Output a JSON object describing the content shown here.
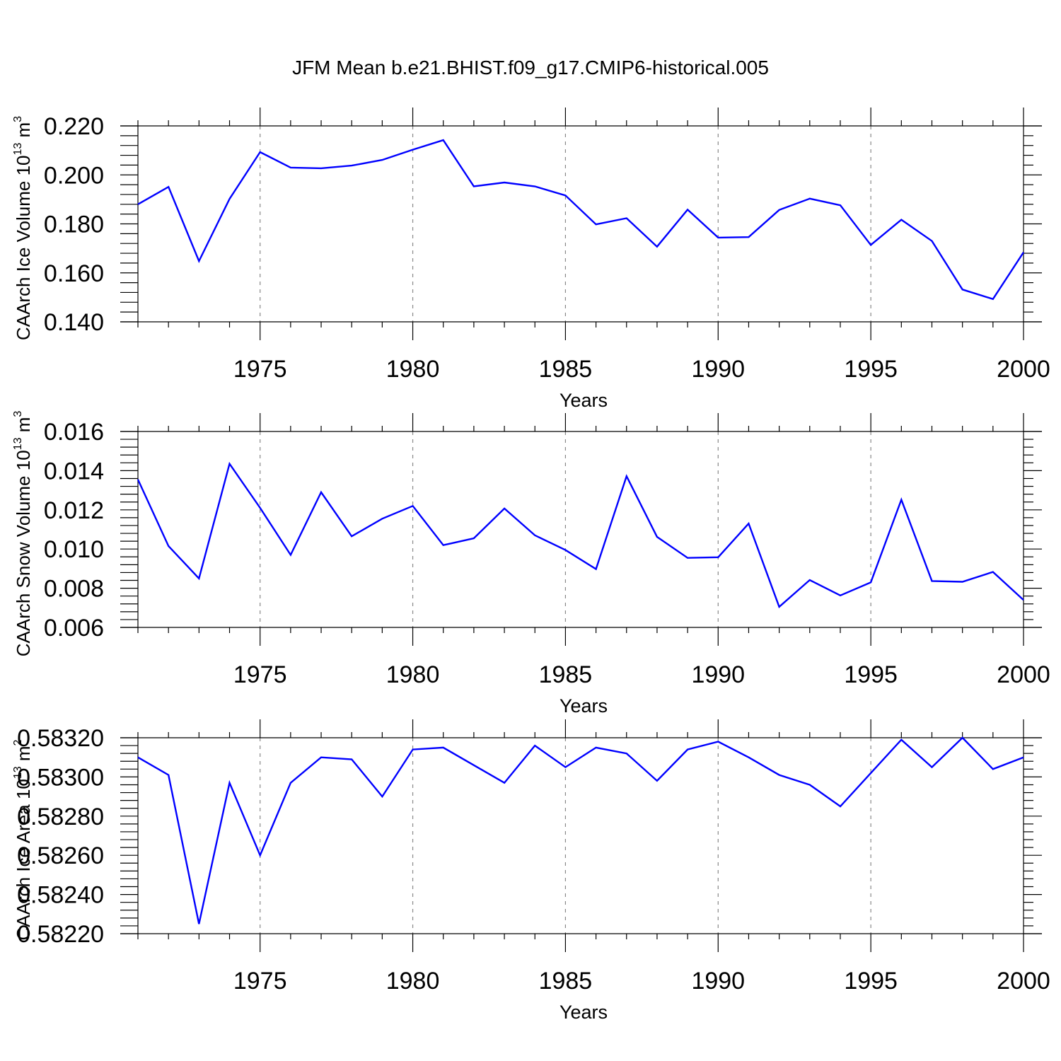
{
  "title": "JFM Mean b.e21.BHIST.f09_g17.CMIP6-historical.005",
  "colors": {
    "line": "#0000ff",
    "axis": "#000000",
    "grid": "#888888"
  },
  "chart_data": [
    {
      "type": "line",
      "ylabel": {
        "prefix": "CAArch Ice Volume 10",
        "exp": "13",
        "unit": " m",
        "unit_exp": "3"
      },
      "xlabel": "Years",
      "xlim": [
        1971,
        2000
      ],
      "ylim": [
        0.14,
        0.22
      ],
      "yticks": [
        0.14,
        0.16,
        0.18,
        0.2,
        0.22
      ],
      "ytick_labels": [
        "0.140",
        "0.160",
        "0.180",
        "0.200",
        "0.220"
      ],
      "xticks": [
        1975,
        1980,
        1985,
        1990,
        1995,
        2000
      ],
      "xtick_labels": [
        "1975",
        "1980",
        "1985",
        "1990",
        "1995",
        "2000"
      ],
      "gridlines_x": [
        1975,
        1980,
        1985,
        1990,
        1995
      ],
      "x": [
        1971,
        1972,
        1973,
        1974,
        1975,
        1976,
        1977,
        1978,
        1979,
        1980,
        1981,
        1982,
        1983,
        1984,
        1985,
        1986,
        1987,
        1988,
        1989,
        1990,
        1991,
        1992,
        1993,
        1994,
        1995,
        1996,
        1997,
        1998,
        1999,
        2000
      ],
      "series": [
        {
          "name": "Ice Volume",
          "values": [
            0.188,
            0.1951,
            0.1648,
            0.1902,
            0.2093,
            0.203,
            0.2027,
            0.2038,
            0.2061,
            0.2103,
            0.2142,
            0.1953,
            0.1969,
            0.1953,
            0.1916,
            0.1798,
            0.1823,
            0.1707,
            0.1858,
            0.1744,
            0.1746,
            0.1857,
            0.1903,
            0.1876,
            0.1714,
            0.1817,
            0.173,
            0.1532,
            0.1493,
            0.1684
          ]
        }
      ]
    },
    {
      "type": "line",
      "ylabel": {
        "prefix": "CAArch Snow Volume 10",
        "exp": "13",
        "unit": " m",
        "unit_exp": "3"
      },
      "xlabel": "Years",
      "xlim": [
        1971,
        2000
      ],
      "ylim": [
        0.006,
        0.016
      ],
      "yticks": [
        0.006,
        0.008,
        0.01,
        0.012,
        0.014,
        0.016
      ],
      "ytick_labels": [
        "0.006",
        "0.008",
        "0.010",
        "0.012",
        "0.014",
        "0.016"
      ],
      "xticks": [
        1975,
        1980,
        1985,
        1990,
        1995,
        2000
      ],
      "xtick_labels": [
        "1975",
        "1980",
        "1985",
        "1990",
        "1995",
        "2000"
      ],
      "gridlines_x": [
        1975,
        1980,
        1985,
        1990,
        1995
      ],
      "x": [
        1971,
        1972,
        1973,
        1974,
        1975,
        1976,
        1977,
        1978,
        1979,
        1980,
        1981,
        1982,
        1983,
        1984,
        1985,
        1986,
        1987,
        1988,
        1989,
        1990,
        1991,
        1992,
        1993,
        1994,
        1995,
        1996,
        1997,
        1998,
        1999,
        2000
      ],
      "series": [
        {
          "name": "Snow Volume",
          "values": [
            0.01355,
            0.01015,
            0.0085,
            0.01435,
            0.0121,
            0.0097,
            0.0129,
            0.01065,
            0.01155,
            0.0122,
            0.0102,
            0.01055,
            0.01207,
            0.0107,
            0.00995,
            0.00898,
            0.01372,
            0.01062,
            0.00955,
            0.00958,
            0.0113,
            0.00705,
            0.00842,
            0.00763,
            0.0083,
            0.01252,
            0.00837,
            0.00833,
            0.00883,
            0.0074
          ]
        }
      ]
    },
    {
      "type": "line",
      "ylabel": {
        "prefix": "CAArch Ice Area 10",
        "exp": "13",
        "unit": " m",
        "unit_exp": "2"
      },
      "xlabel": "Years",
      "xlim": [
        1971,
        2000
      ],
      "ylim": [
        0.5822,
        0.5832
      ],
      "yticks": [
        0.5822,
        0.5824,
        0.5826,
        0.5828,
        0.583,
        0.5832
      ],
      "ytick_labels": [
        "0.58220",
        "0.58240",
        "0.58260",
        "0.58280",
        "0.58300",
        "0.58320"
      ],
      "xticks": [
        1975,
        1980,
        1985,
        1990,
        1995,
        2000
      ],
      "xtick_labels": [
        "1975",
        "1980",
        "1985",
        "1990",
        "1995",
        "2000"
      ],
      "gridlines_x": [
        1975,
        1980,
        1985,
        1990,
        1995
      ],
      "x": [
        1971,
        1972,
        1973,
        1974,
        1975,
        1976,
        1977,
        1978,
        1979,
        1980,
        1981,
        1982,
        1983,
        1984,
        1985,
        1986,
        1987,
        1988,
        1989,
        1990,
        1991,
        1992,
        1993,
        1994,
        1995,
        1996,
        1997,
        1998,
        1999,
        2000
      ],
      "series": [
        {
          "name": "Ice Area",
          "values": [
            0.5831,
            0.58301,
            0.58225,
            0.58297,
            0.5826,
            0.58297,
            0.5831,
            0.58309,
            0.5829,
            0.58314,
            0.58315,
            0.58306,
            0.58297,
            0.58316,
            0.58305,
            0.58315,
            0.58312,
            0.58298,
            0.58314,
            0.58318,
            0.5831,
            0.58301,
            0.58296,
            0.58285,
            0.58302,
            0.58319,
            0.58305,
            0.5832,
            0.58304,
            0.5831
          ]
        }
      ]
    }
  ]
}
